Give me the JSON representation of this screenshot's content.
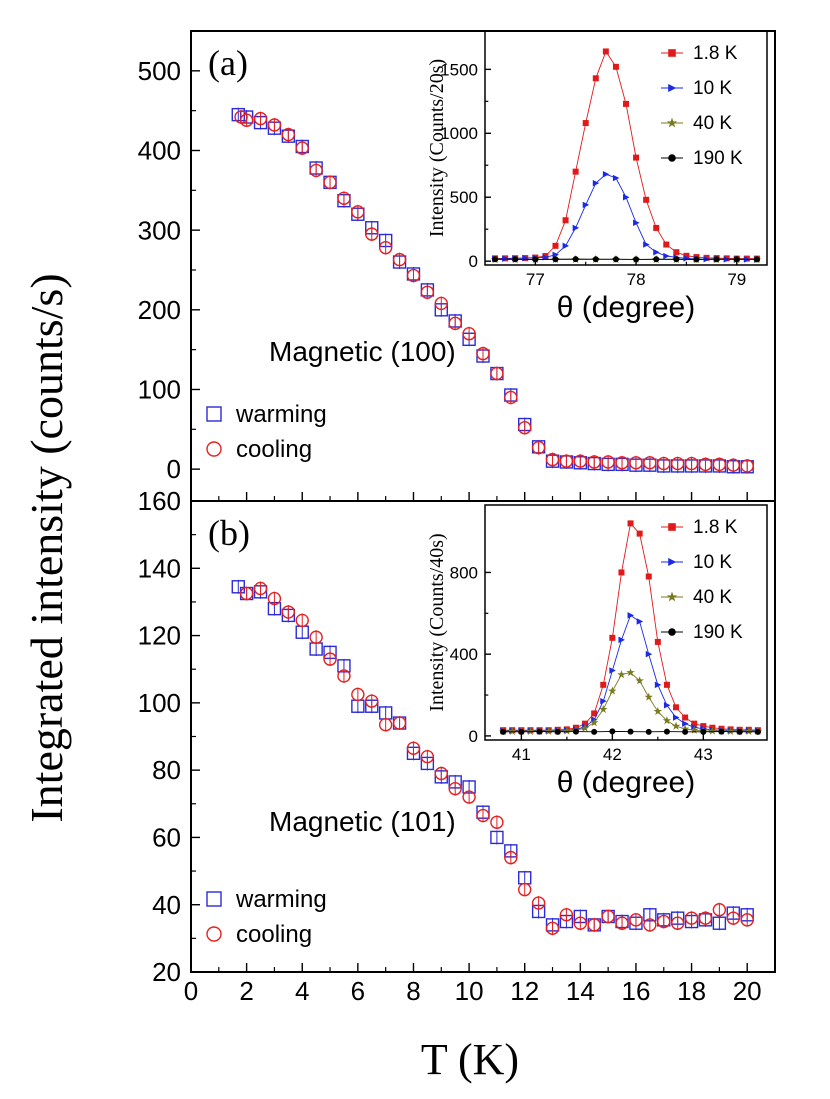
{
  "figure": {
    "ylabel": "Integrated intensity (counts/s)",
    "xlabel": "T (K)"
  },
  "chart_data": [
    {
      "id": "a",
      "type": "scatter",
      "panel_label": "(a)",
      "annotation": "Magnetic (100)",
      "xlim": [
        0,
        21
      ],
      "ylim": [
        -40,
        550
      ],
      "xticks": [
        0,
        2,
        4,
        6,
        8,
        10,
        12,
        14,
        16,
        18,
        20
      ],
      "yticks": [
        0,
        100,
        200,
        300,
        400,
        500
      ],
      "legend_position": "bottom-left",
      "series": [
        {
          "name": "warming",
          "marker": "square",
          "color": "#2a2ad8",
          "x": [
            1.7,
            2.0,
            2.5,
            3.0,
            3.5,
            4.0,
            4.5,
            5.0,
            5.5,
            6.0,
            6.5,
            7.0,
            7.5,
            8.0,
            8.5,
            9.0,
            9.5,
            10.0,
            10.5,
            11.0,
            11.5,
            12.0,
            12.5,
            13.0,
            13.5,
            14.0,
            14.5,
            15.0,
            15.5,
            16.0,
            16.5,
            17.0,
            17.5,
            18.0,
            18.5,
            19.0,
            19.5,
            20.0
          ],
          "y": [
            445,
            442,
            435,
            428,
            418,
            405,
            378,
            360,
            337,
            320,
            303,
            287,
            260,
            245,
            225,
            200,
            186,
            163,
            142,
            120,
            93,
            56,
            28,
            10,
            9,
            8,
            7,
            6,
            6,
            5,
            5,
            4,
            4,
            4,
            4,
            4,
            3,
            3
          ]
        },
        {
          "name": "cooling",
          "marker": "circle",
          "color": "#e62020",
          "x": [
            1.8,
            2.0,
            2.5,
            3.0,
            3.5,
            4.0,
            4.5,
            5.0,
            5.5,
            6.0,
            6.5,
            7.0,
            7.5,
            8.0,
            8.5,
            9.0,
            9.5,
            10.0,
            10.5,
            11.0,
            11.5,
            12.0,
            12.5,
            13.0,
            13.5,
            14.0,
            14.5,
            15.0,
            15.5,
            16.0,
            16.5,
            17.0,
            17.5,
            18.0,
            18.5,
            19.0,
            19.5,
            20.0
          ],
          "y": [
            442,
            438,
            440,
            432,
            420,
            403,
            375,
            360,
            340,
            323,
            295,
            278,
            263,
            243,
            222,
            208,
            183,
            170,
            145,
            120,
            90,
            52,
            27,
            12,
            10,
            10,
            9,
            9,
            8,
            8,
            8,
            7,
            7,
            7,
            6,
            6,
            5,
            4
          ]
        }
      ],
      "inset": {
        "type": "line",
        "xlabel": "θ (degree)",
        "ylabel": "Intensity (Counts/20s)",
        "xlim": [
          76.5,
          79.3
        ],
        "ylim": [
          -30,
          1800
        ],
        "xticks": [
          77,
          78,
          79
        ],
        "yticks": [
          0,
          500,
          1000,
          1500
        ],
        "legend_position": "top-right",
        "series": [
          {
            "name": "1.8 K",
            "marker": "square",
            "color": "#e01a1a",
            "x": [
              76.6,
              76.7,
              76.8,
              76.9,
              77.0,
              77.1,
              77.2,
              77.3,
              77.4,
              77.5,
              77.6,
              77.7,
              77.8,
              77.9,
              78.0,
              78.1,
              78.2,
              78.3,
              78.4,
              78.5,
              78.6,
              78.7,
              78.8,
              78.9,
              79.0,
              79.1,
              79.2
            ],
            "y": [
              22,
              22,
              23,
              24,
              28,
              40,
              120,
              320,
              700,
              1080,
              1430,
              1640,
              1520,
              1230,
              810,
              480,
              260,
              130,
              70,
              42,
              32,
              26,
              24,
              22,
              20,
              20,
              20
            ]
          },
          {
            "name": "10 K",
            "marker": "triangle-right",
            "color": "#1a2ae6",
            "x": [
              76.6,
              76.7,
              76.8,
              76.9,
              77.0,
              77.1,
              77.2,
              77.3,
              77.4,
              77.5,
              77.6,
              77.7,
              77.8,
              77.9,
              78.0,
              78.1,
              78.2,
              78.3,
              78.4,
              78.5,
              78.6,
              78.7,
              78.8,
              78.9,
              79.0,
              79.1,
              79.2
            ],
            "y": [
              18,
              20,
              22,
              24,
              26,
              30,
              50,
              120,
              260,
              440,
              610,
              680,
              650,
              500,
              300,
              130,
              70,
              40,
              30,
              22,
              18,
              16,
              15,
              14,
              14,
              13,
              13
            ]
          },
          {
            "name": "40 K",
            "marker": "star",
            "color": "#7a7a20",
            "x": [
              76.6,
              76.8,
              77.0,
              77.2,
              77.4,
              77.6,
              77.8,
              78.0,
              78.2,
              78.4,
              78.6,
              78.8,
              79.0,
              79.2
            ],
            "y": [
              12,
              12,
              13,
              13,
              13,
              14,
              14,
              14,
              13,
              13,
              12,
              12,
              12,
              12
            ]
          },
          {
            "name": "190 K",
            "marker": "circle",
            "color": "#000000",
            "x": [
              76.6,
              76.8,
              77.0,
              77.2,
              77.4,
              77.6,
              77.8,
              78.0,
              78.2,
              78.4,
              78.6,
              78.8,
              79.0,
              79.2
            ],
            "y": [
              15,
              15,
              14,
              15,
              16,
              15,
              15,
              14,
              15,
              15,
              14,
              15,
              15,
              14
            ]
          }
        ]
      }
    },
    {
      "id": "b",
      "type": "scatter",
      "panel_label": "(b)",
      "annotation": "Magnetic (101)",
      "xlim": [
        0,
        21
      ],
      "ylim": [
        20,
        160
      ],
      "xticks": [
        0,
        2,
        4,
        6,
        8,
        10,
        12,
        14,
        16,
        18,
        20
      ],
      "yticks": [
        20,
        40,
        60,
        80,
        100,
        120,
        140,
        160
      ],
      "legend_position": "bottom-left",
      "series": [
        {
          "name": "warming",
          "marker": "square",
          "color": "#2a2ad8",
          "x": [
            1.7,
            2.0,
            2.5,
            3.0,
            3.5,
            4.0,
            4.5,
            5.0,
            5.5,
            6.0,
            6.5,
            7.0,
            7.5,
            8.0,
            8.5,
            9.0,
            9.5,
            10.0,
            10.5,
            11.0,
            11.5,
            12.0,
            12.5,
            13.0,
            13.5,
            14.0,
            14.5,
            15.0,
            15.5,
            16.0,
            16.5,
            17.0,
            17.5,
            18.0,
            18.5,
            19.0,
            19.5,
            20.0
          ],
          "y": [
            134.5,
            132.5,
            133,
            128,
            126,
            121,
            116,
            115,
            111,
            99,
            99,
            97,
            94,
            85,
            82,
            78,
            76.5,
            75,
            67.5,
            60,
            56,
            48,
            38,
            34,
            35,
            36.5,
            34,
            36.5,
            35,
            34.5,
            37,
            35.5,
            36,
            35,
            35.5,
            34.5,
            37.5,
            37
          ]
        },
        {
          "name": "cooling",
          "marker": "circle",
          "color": "#e62020",
          "x": [
            2.0,
            2.5,
            3.0,
            3.5,
            4.0,
            4.5,
            5.0,
            5.5,
            6.0,
            6.5,
            7.0,
            7.5,
            8.0,
            8.5,
            9.0,
            9.5,
            10.0,
            10.5,
            11.0,
            11.5,
            12.0,
            12.5,
            13.0,
            13.5,
            14.0,
            14.5,
            15.0,
            15.5,
            16.0,
            16.5,
            17.0,
            17.5,
            18.0,
            18.5,
            19.0,
            19.5,
            20.0
          ],
          "y": [
            132.5,
            134,
            131,
            127,
            124.5,
            119.5,
            113,
            108,
            102.5,
            100.5,
            93.5,
            94,
            86.5,
            84,
            79,
            74.5,
            72,
            66.5,
            64.5,
            54,
            44.5,
            40.5,
            33,
            37,
            34.5,
            34,
            36.5,
            34.5,
            35.5,
            34,
            35,
            34.5,
            36,
            36,
            38.5,
            36,
            35.5
          ]
        }
      ],
      "inset": {
        "type": "line",
        "xlabel": "θ (degree)",
        "ylabel": "Intensity (Counts/40s)",
        "xlim": [
          40.6,
          43.7
        ],
        "ylim": [
          -20,
          1130
        ],
        "xticks": [
          41,
          42,
          43
        ],
        "yticks": [
          0,
          400,
          800
        ],
        "legend_position": "top-right",
        "series": [
          {
            "name": "1.8 K",
            "marker": "square",
            "color": "#e01a1a",
            "x": [
              40.8,
              40.9,
              41.0,
              41.1,
              41.2,
              41.3,
              41.4,
              41.5,
              41.6,
              41.7,
              41.8,
              41.9,
              42.0,
              42.1,
              42.2,
              42.3,
              42.4,
              42.5,
              42.6,
              42.7,
              42.8,
              42.9,
              43.0,
              43.1,
              43.2,
              43.3,
              43.4,
              43.5,
              43.6
            ],
            "y": [
              28,
              28,
              28,
              28,
              28,
              28,
              30,
              32,
              40,
              60,
              110,
              250,
              480,
              800,
              1040,
              990,
              780,
              460,
              250,
              140,
              90,
              60,
              48,
              40,
              35,
              32,
              30,
              30,
              28
            ]
          },
          {
            "name": "10 K",
            "marker": "triangle-right",
            "color": "#1a2ae6",
            "x": [
              40.8,
              40.9,
              41.0,
              41.1,
              41.2,
              41.3,
              41.4,
              41.5,
              41.6,
              41.7,
              41.8,
              41.9,
              42.0,
              42.1,
              42.2,
              42.3,
              42.4,
              42.5,
              42.6,
              42.7,
              42.8,
              42.9,
              43.0,
              43.1,
              43.2,
              43.3,
              43.4,
              43.5,
              43.6
            ],
            "y": [
              25,
              25,
              25,
              25,
              25,
              25,
              26,
              28,
              32,
              45,
              80,
              170,
              320,
              470,
              590,
              560,
              400,
              250,
              150,
              90,
              60,
              42,
              35,
              30,
              28,
              26,
              25,
              25,
              25
            ]
          },
          {
            "name": "40 K",
            "marker": "star",
            "color": "#7a7a20",
            "x": [
              40.8,
              40.9,
              41.0,
              41.1,
              41.2,
              41.3,
              41.4,
              41.5,
              41.6,
              41.7,
              41.8,
              41.9,
              42.0,
              42.1,
              42.2,
              42.3,
              42.4,
              42.5,
              42.6,
              42.7,
              42.8,
              42.9,
              43.0,
              43.1,
              43.2,
              43.3,
              43.4,
              43.5,
              43.6
            ],
            "y": [
              22,
              22,
              22,
              22,
              22,
              22,
              23,
              24,
              28,
              38,
              65,
              130,
              220,
              300,
              310,
              270,
              190,
              120,
              75,
              48,
              34,
              28,
              25,
              24,
              23,
              22,
              22,
              22,
              22
            ]
          },
          {
            "name": "190 K",
            "marker": "circle",
            "color": "#000000",
            "x": [
              40.8,
              41.0,
              41.2,
              41.4,
              41.6,
              41.8,
              42.0,
              42.2,
              42.4,
              42.6,
              42.8,
              43.0,
              43.2,
              43.4,
              43.6
            ],
            "y": [
              20,
              20,
              21,
              20,
              21,
              20,
              22,
              21,
              20,
              21,
              20,
              20,
              21,
              20,
              20
            ]
          }
        ]
      }
    }
  ]
}
